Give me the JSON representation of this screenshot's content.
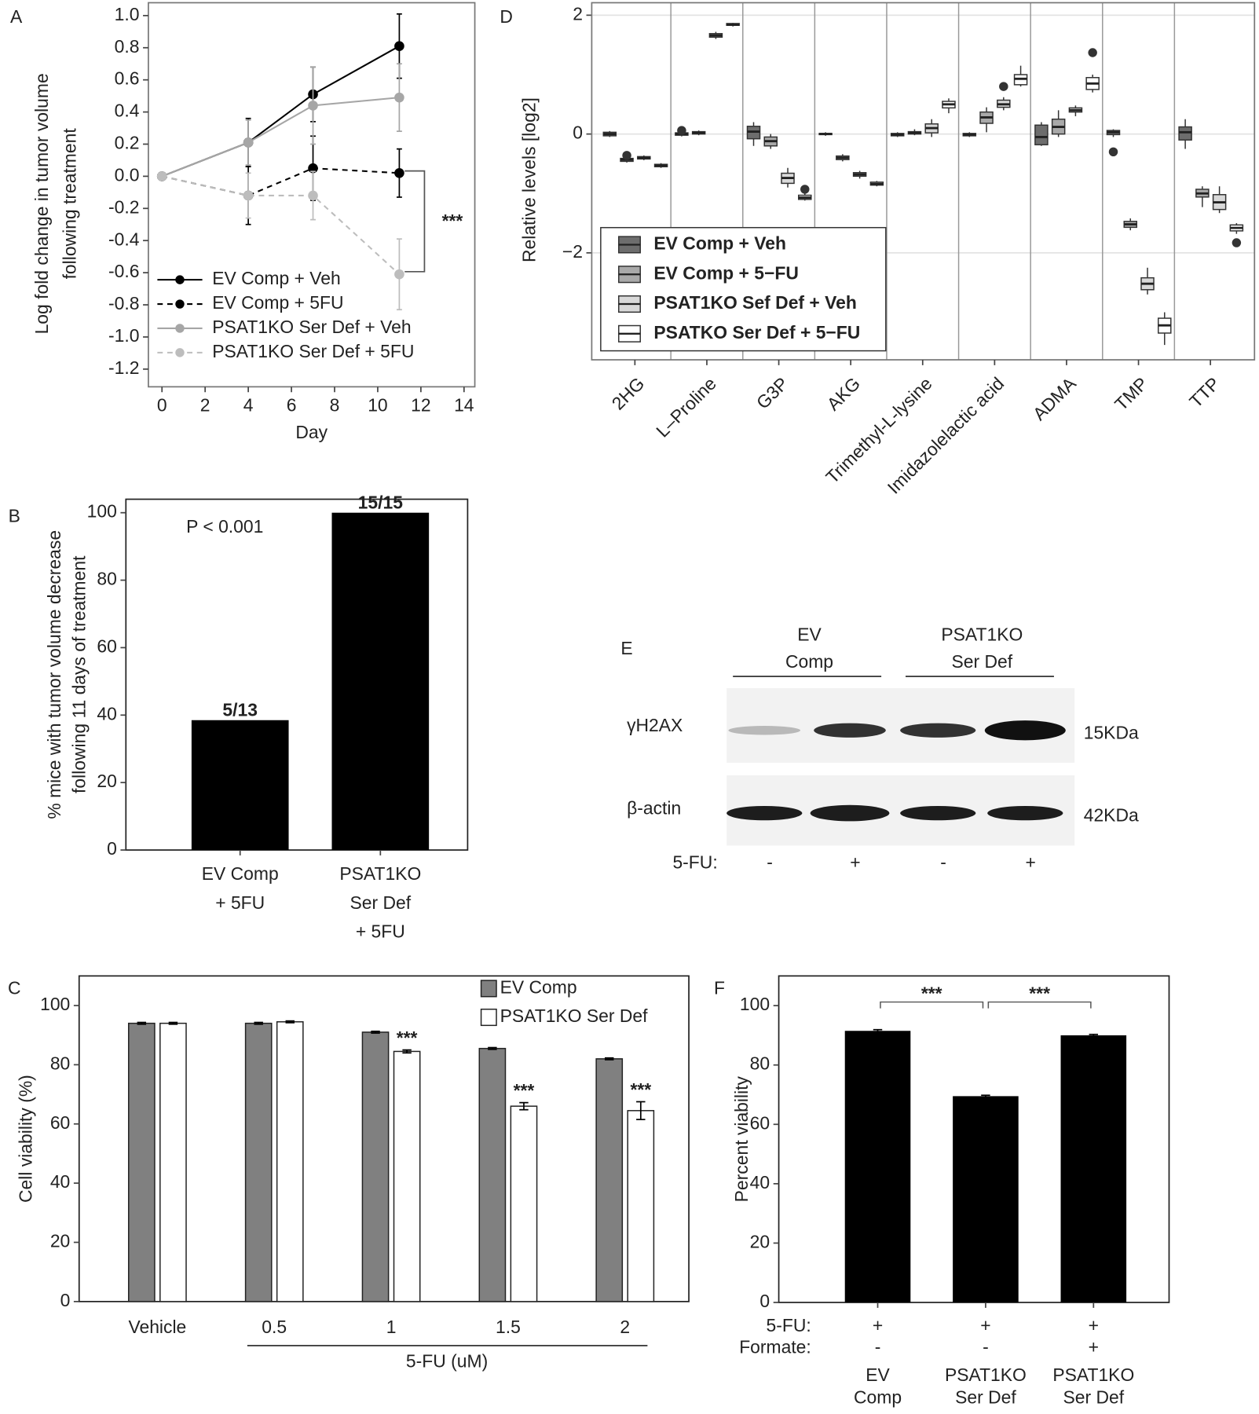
{
  "chart_data": [
    {
      "type": "line",
      "panel": "A",
      "ylabel": [
        "Log fold change in tumor volume",
        "following treatment"
      ],
      "xlabel": "Day",
      "x": [
        0,
        4,
        7,
        11
      ],
      "xlim": [
        -0.63,
        14.5
      ],
      "xticks": [
        0,
        2,
        4,
        6,
        8,
        10,
        12,
        14
      ],
      "ylim": [
        -1.31,
        1.08
      ],
      "yticks": [
        {
          "value": 1.0,
          "label": "1.0"
        },
        0.8,
        0.6,
        0.4,
        0.2,
        {
          "value": 0.0,
          "label": "0.0"
        },
        -0.2,
        -0.4,
        -0.6,
        -0.8,
        {
          "value": -1.0,
          "label": "-1.0"
        },
        -1.2
      ],
      "annotation": "***",
      "series": [
        {
          "name": "EV Comp + Veh",
          "color": "#000000",
          "line_style": "solid",
          "values": [
            0,
            0.21,
            0.51,
            0.81
          ],
          "errors": [
            0,
            0.15,
            0.17,
            0.2
          ]
        },
        {
          "name": "EV Comp + 5FU",
          "color": "#000000",
          "line_style": "dashed",
          "values": [
            0,
            -0.12,
            0.05,
            0.02
          ],
          "errors": [
            0,
            0.18,
            0.2,
            0.15
          ]
        },
        {
          "name": "PSAT1KO Ser Def + Veh",
          "color": "#a6a6a6",
          "line_style": "solid",
          "values": [
            0,
            0.21,
            0.44,
            0.49
          ],
          "errors": [
            0,
            0.14,
            0.24,
            0.21
          ]
        },
        {
          "name": "PSAT1KO Ser Def + 5FU",
          "color": "#bdbdbd",
          "line_style": "dashed",
          "values": [
            0,
            -0.12,
            -0.12,
            -0.61
          ],
          "errors": [
            0,
            0.14,
            0.15,
            0.22
          ]
        }
      ]
    },
    {
      "type": "bar",
      "panel": "B",
      "ylabel": [
        "% mice with tumor volume decrease",
        "following 11 days of treatment"
      ],
      "categories": [
        [
          "EV Comp",
          "+ 5FU"
        ],
        [
          "PSAT1KO",
          "Ser Def",
          "+ 5FU"
        ]
      ],
      "values": [
        38.5,
        100
      ],
      "value_labels": [
        "5/13",
        "15/15"
      ],
      "color": "#000000",
      "ylim": [
        0,
        104
      ],
      "yticks": [
        0,
        20,
        40,
        60,
        80,
        100
      ],
      "annotation": "P < 0.001"
    },
    {
      "type": "grouped_bar",
      "panel": "C",
      "ylabel": "Cell viability (%)",
      "xlabel": "5-FU (uM)",
      "categories": [
        "Vehicle",
        "0.5",
        "1",
        "1.5",
        "2"
      ],
      "ylim": [
        0,
        110
      ],
      "yticks": [
        0,
        20,
        40,
        60,
        80,
        100
      ],
      "series": [
        {
          "name": "EV Comp",
          "color": "#808080",
          "values": [
            94,
            94,
            91,
            85.5,
            82
          ],
          "errors": [
            0.3,
            0.3,
            0.3,
            0.3,
            0.3
          ]
        },
        {
          "name": "PSAT1KO Ser Def",
          "color": "#ffffff",
          "values": [
            94,
            94.5,
            84.5,
            66,
            64.5
          ],
          "errors": [
            0.3,
            0.3,
            0.5,
            1.2,
            3
          ]
        }
      ],
      "significance": [
        null,
        null,
        "***",
        "***",
        "***"
      ]
    },
    {
      "type": "box",
      "panel": "D",
      "ylabel": "Relative levels [log2]",
      "categories": [
        "2HG",
        "L–Proline",
        "G3P",
        "AKG",
        "Trimethyl-L-lysine",
        "Imidazolelactic acid",
        "ADMA",
        "TMP",
        "TTP"
      ],
      "ylim": [
        -3.8,
        2.21
      ],
      "yticks": [
        {
          "value": -2,
          "label": "−2"
        },
        0,
        2
      ],
      "grid": true,
      "series": [
        {
          "name": "EV Comp + Veh",
          "color": "#6d6d6d",
          "values": [
            [
              -0.05,
              -0.03,
              0,
              0.03,
              0.05
            ],
            [
              -0.04,
              -0.02,
              0,
              0.02,
              0.04
            ],
            [
              -0.2,
              -0.08,
              0.04,
              0.13,
              0.2
            ],
            [
              -0.03,
              -0.01,
              0,
              0.01,
              0.03
            ],
            [
              -0.05,
              -0.03,
              -0.01,
              0.01,
              0.03
            ],
            [
              -0.05,
              -0.03,
              -0.01,
              0.01,
              0.03
            ],
            [
              -0.2,
              -0.18,
              -0.05,
              0.15,
              0.2
            ],
            [
              -0.05,
              -0.01,
              0.03,
              0.06,
              0.08
            ],
            [
              -0.25,
              -0.1,
              0.03,
              0.12,
              0.25
            ]
          ],
          "outliers": [
            [],
            [
              0.06
            ],
            [],
            [],
            [],
            [],
            [],
            [
              -0.3
            ],
            []
          ]
        },
        {
          "name": "EV Comp + 5−FU",
          "color": "#a9a9a9",
          "values": [
            [
              -0.48,
              -0.46,
              -0.43,
              -0.41,
              -0.39
            ],
            [
              -0.02,
              0,
              0.02,
              0.04,
              0.06
            ],
            [
              -0.25,
              -0.2,
              -0.12,
              -0.05,
              0
            ],
            [
              -0.46,
              -0.43,
              -0.4,
              -0.37,
              -0.34
            ],
            [
              -0.02,
              0,
              0.02,
              0.04,
              0.08
            ],
            [
              0.03,
              0.18,
              0.28,
              0.37,
              0.45
            ],
            [
              -0.05,
              0,
              0.12,
              0.25,
              0.4
            ],
            [
              -1.62,
              -1.57,
              -1.52,
              -1.47,
              -1.42
            ],
            [
              -1.23,
              -1.06,
              -1.0,
              -0.93,
              -0.88
            ]
          ],
          "outliers": [
            [
              -0.36
            ],
            [],
            [],
            [],
            [],
            [],
            [],
            [],
            []
          ]
        },
        {
          "name": "PSAT1KO Sef Def + Veh",
          "color": "#d9d9d9",
          "values": [
            [
              -0.44,
              -0.42,
              -0.4,
              -0.38,
              -0.36
            ],
            [
              1.6,
              1.63,
              1.66,
              1.69,
              1.72
            ],
            [
              -0.9,
              -0.83,
              -0.74,
              -0.66,
              -0.57
            ],
            [
              -0.75,
              -0.71,
              -0.68,
              -0.65,
              -0.62
            ],
            [
              -0.05,
              0.02,
              0.1,
              0.17,
              0.25
            ],
            [
              0.4,
              0.45,
              0.5,
              0.57,
              0.62
            ],
            [
              0.3,
              0.37,
              0.4,
              0.44,
              0.48
            ],
            [
              -2.7,
              -2.62,
              -2.52,
              -2.42,
              -2.25
            ],
            [
              -1.33,
              -1.27,
              -1.15,
              -1.02,
              -0.88
            ]
          ],
          "outliers": [
            [],
            [],
            [],
            [],
            [],
            [
              0.8
            ],
            [],
            [],
            []
          ]
        },
        {
          "name": "PSATKO Ser Def + 5−FU",
          "color": "#ffffff",
          "values": [
            [
              -0.57,
              -0.55,
              -0.53,
              -0.51,
              -0.49
            ],
            [
              1.81,
              1.83,
              1.84,
              1.86,
              1.87
            ],
            [
              -1.12,
              -1.1,
              -1.07,
              -1.03,
              -1.0
            ],
            [
              -0.88,
              -0.86,
              -0.84,
              -0.81,
              -0.79
            ],
            [
              0.35,
              0.44,
              0.5,
              0.55,
              0.6
            ],
            [
              0.8,
              0.83,
              0.93,
              1.0,
              1.15
            ],
            [
              0.7,
              0.75,
              0.85,
              0.95,
              1.0
            ],
            [
              -3.55,
              -3.35,
              -3.22,
              -3.1,
              -3.0
            ],
            [
              -1.68,
              -1.63,
              -1.58,
              -1.53,
              -1.5
            ]
          ],
          "outliers": [
            [],
            [],
            [
              -0.93
            ],
            [],
            [],
            [],
            [
              1.37
            ],
            [],
            [
              -1.83
            ]
          ]
        }
      ]
    },
    {
      "type": "blot",
      "panel": "E",
      "groups": [
        [
          "EV",
          "Comp"
        ],
        [
          "PSAT1KO",
          "Ser Def"
        ]
      ],
      "rows": [
        {
          "name": "γH2AX",
          "size": "15KDa"
        },
        {
          "name": "β-actin",
          "size": "42KDa"
        }
      ],
      "treatment": {
        "name": "5-FU:",
        "values": [
          "-",
          "+",
          "-",
          "+"
        ]
      }
    },
    {
      "type": "bar",
      "panel": "F",
      "ylabel": "Percent viability",
      "categories": [
        [
          "EV",
          "Comp"
        ],
        [
          "PSAT1KO",
          "Ser Def"
        ],
        [
          "PSAT1KO",
          "Ser Def"
        ]
      ],
      "values": [
        91.5,
        69.5,
        90
      ],
      "errors": [
        0.4,
        0.3,
        0.3
      ],
      "color": "#000000",
      "ylim": [
        0,
        110
      ],
      "yticks": [
        0,
        20,
        40,
        60,
        80,
        100
      ],
      "treatments": [
        {
          "name": "5-FU:",
          "values": [
            "+",
            "+",
            "+"
          ]
        },
        {
          "name": "Formate:",
          "values": [
            "-",
            "-",
            "+"
          ]
        }
      ],
      "significance": [
        "***",
        "***"
      ]
    }
  ]
}
